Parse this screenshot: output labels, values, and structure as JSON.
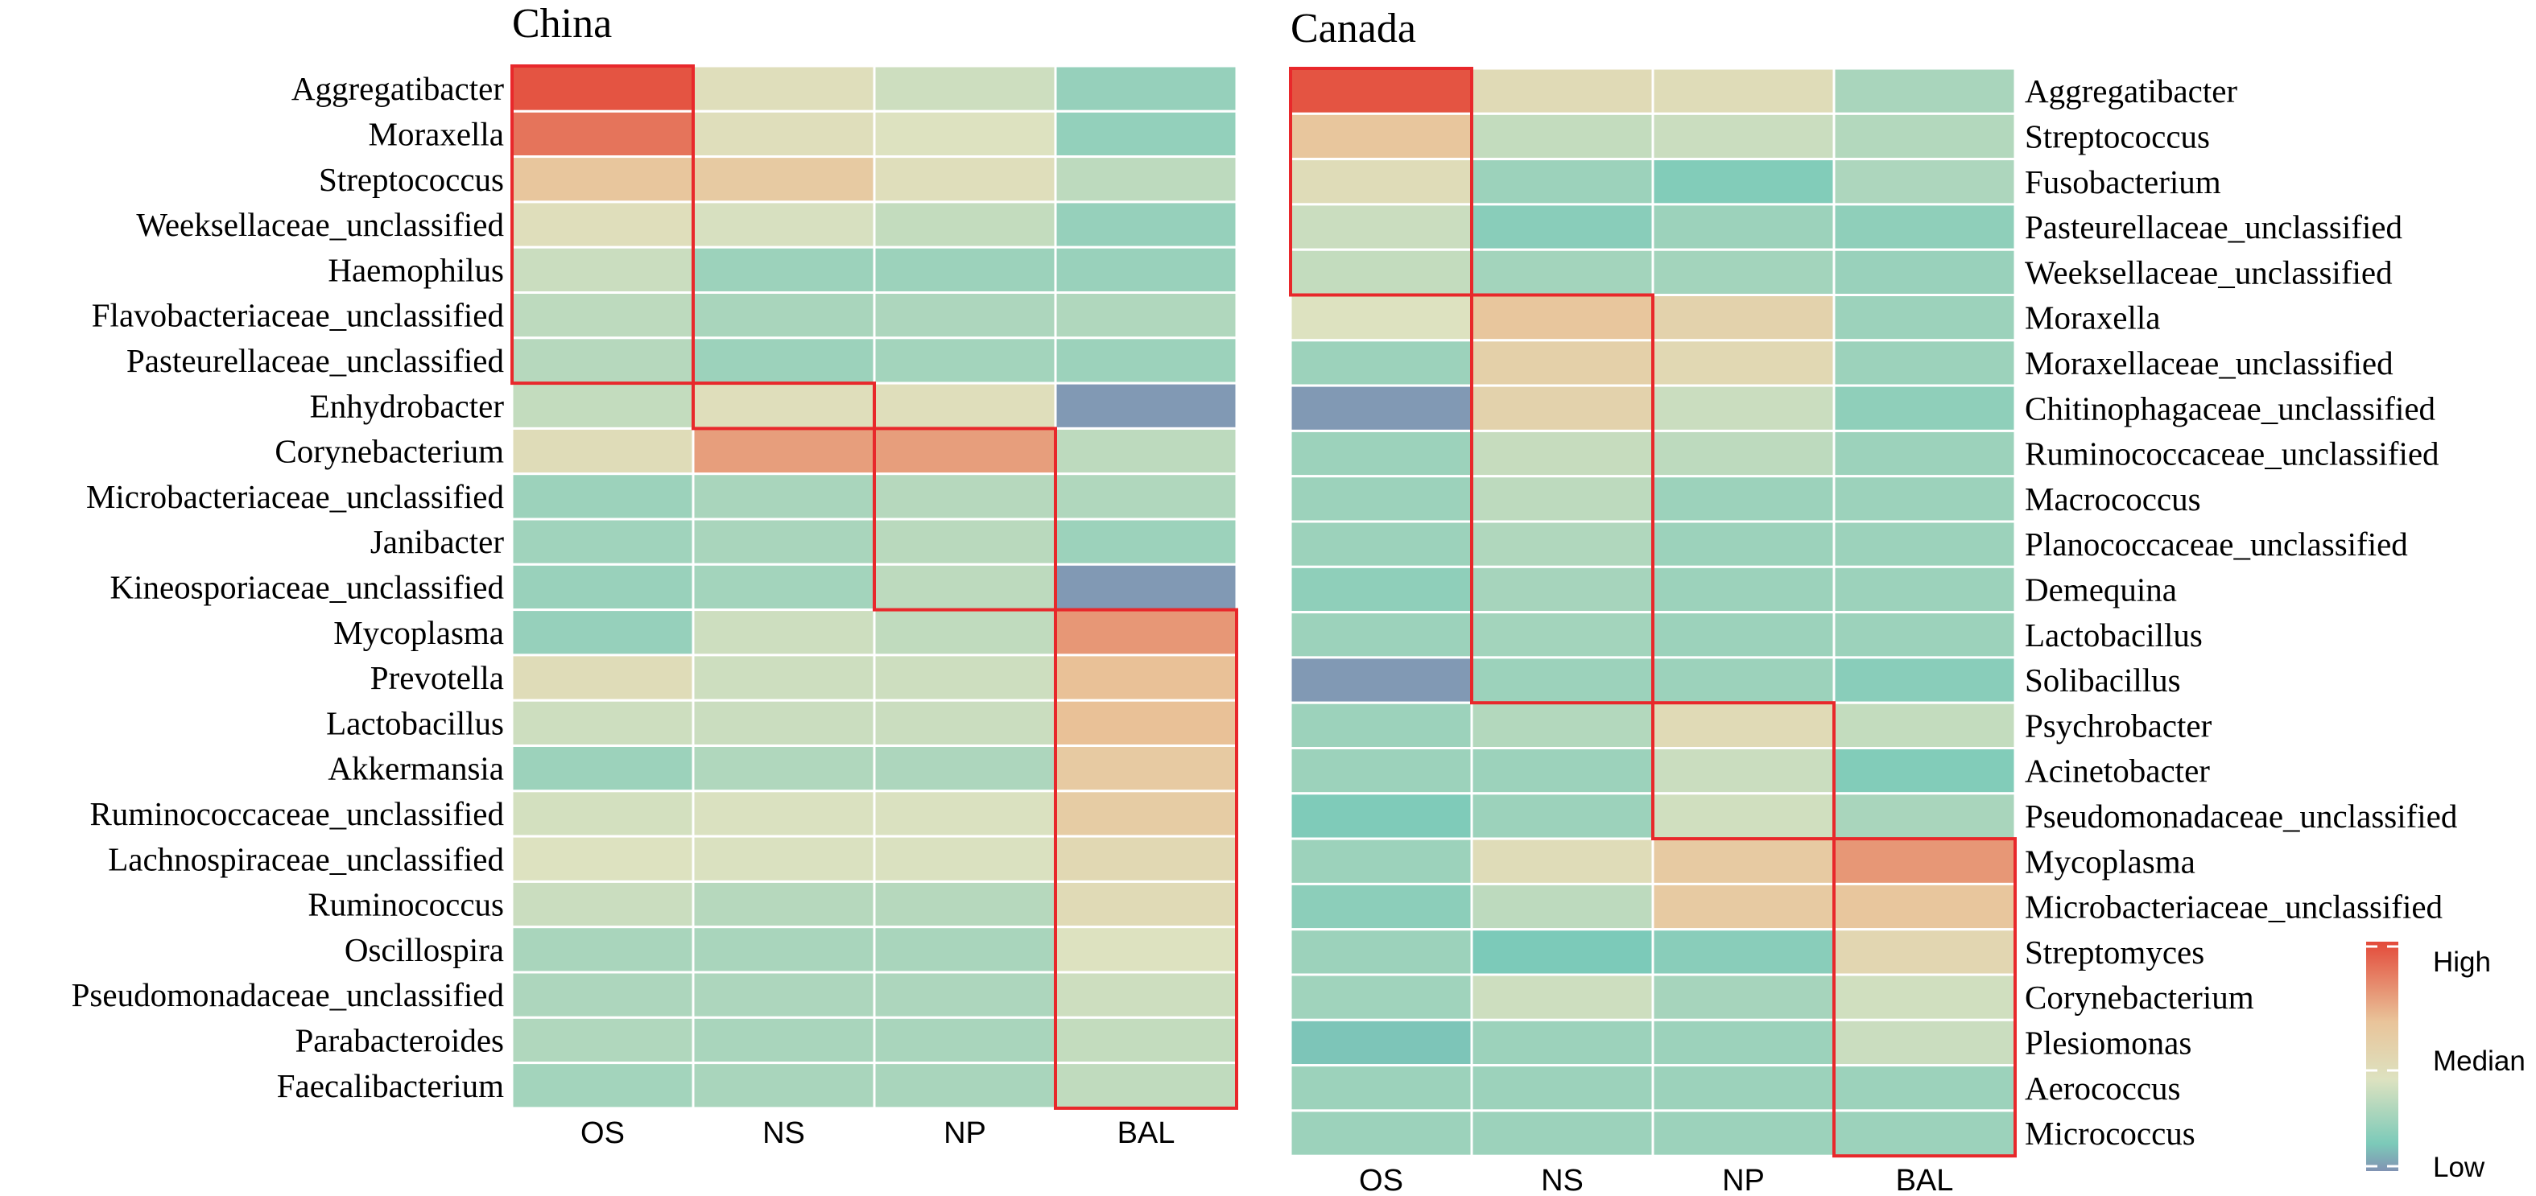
{
  "chart_data": [
    {
      "type": "heatmap",
      "title": "China",
      "columns": [
        "OS",
        "NS",
        "NP",
        "BAL"
      ],
      "rows": [
        "Aggregatibacter",
        "Moraxella",
        "Streptococcus",
        "Weeksellaceae_unclassified",
        "Haemophilus",
        "Flavobacteriaceae_unclassified",
        "Pasteurellaceae_unclassified",
        "Enhydrobacter",
        "Corynebacterium",
        "Microbacteriaceae_unclassified",
        "Janibacter",
        "Kineosporiaceae_unclassified",
        "Mycoplasma",
        "Prevotella",
        "Lactobacillus",
        "Akkermansia",
        "Ruminococcaceae_unclassified",
        "Lachnospiraceae_unclassified",
        "Ruminococcus",
        "Oscillospira",
        "Pseudomonadaceae_unclassified",
        "Parabacteroides",
        "Faecalibacterium"
      ],
      "values": [
        [
          0.97,
          0.52,
          0.45,
          0.28
        ],
        [
          0.88,
          0.52,
          0.5,
          0.27
        ],
        [
          0.64,
          0.62,
          0.52,
          0.4
        ],
        [
          0.52,
          0.48,
          0.42,
          0.28
        ],
        [
          0.44,
          0.3,
          0.3,
          0.29
        ],
        [
          0.4,
          0.34,
          0.35,
          0.36
        ],
        [
          0.38,
          0.3,
          0.32,
          0.3
        ],
        [
          0.42,
          0.52,
          0.52,
          0.02
        ],
        [
          0.53,
          0.76,
          0.76,
          0.4
        ],
        [
          0.3,
          0.34,
          0.38,
          0.36
        ],
        [
          0.31,
          0.34,
          0.39,
          0.3
        ],
        [
          0.29,
          0.32,
          0.4,
          0.02
        ],
        [
          0.28,
          0.45,
          0.41,
          0.78
        ],
        [
          0.53,
          0.45,
          0.45,
          0.66
        ],
        [
          0.45,
          0.44,
          0.44,
          0.66
        ],
        [
          0.3,
          0.36,
          0.35,
          0.62
        ],
        [
          0.47,
          0.49,
          0.49,
          0.61
        ],
        [
          0.5,
          0.49,
          0.49,
          0.55
        ],
        [
          0.44,
          0.38,
          0.38,
          0.54
        ],
        [
          0.34,
          0.34,
          0.34,
          0.5
        ],
        [
          0.35,
          0.35,
          0.35,
          0.45
        ],
        [
          0.36,
          0.34,
          0.34,
          0.42
        ],
        [
          0.32,
          0.34,
          0.34,
          0.41
        ]
      ],
      "highlight_blocks": [
        {
          "column": "OS",
          "from_row": "Aggregatibacter",
          "to_row": "Pasteurellaceae_unclassified"
        },
        {
          "column": "NS",
          "from_row": "Enhydrobacter",
          "to_row": "Enhydrobacter"
        },
        {
          "column": "NP",
          "from_row": "Corynebacterium",
          "to_row": "Kineosporiaceae_unclassified"
        },
        {
          "column": "BAL",
          "from_row": "Mycoplasma",
          "to_row": "Faecalibacterium"
        }
      ]
    },
    {
      "type": "heatmap",
      "title": "Canada",
      "columns": [
        "OS",
        "NS",
        "NP",
        "BAL"
      ],
      "rows": [
        "Aggregatibacter",
        "Streptococcus",
        "Fusobacterium",
        "Pasteurellaceae_unclassified",
        "Weeksellaceae_unclassified",
        "Moraxella",
        "Moraxellaceae_unclassified",
        "Chitinophagaceae_unclassified",
        "Ruminococcaceae_unclassified",
        "Macrococcus",
        "Planococcaceae_unclassified",
        "Demequina",
        "Lactobacillus",
        "Solibacillus",
        "Psychrobacter",
        "Acinetobacter",
        "Pseudomonadaceae_unclassified",
        "Mycoplasma",
        "Microbacteriaceae_unclassified",
        "Streptomyces",
        "Corynebacterium",
        "Plesiomonas",
        "Aerococcus",
        "Micrococcus"
      ],
      "values": [
        [
          0.97,
          0.54,
          0.53,
          0.34
        ],
        [
          0.64,
          0.42,
          0.44,
          0.37
        ],
        [
          0.53,
          0.3,
          0.22,
          0.35
        ],
        [
          0.44,
          0.24,
          0.3,
          0.26
        ],
        [
          0.42,
          0.32,
          0.32,
          0.29
        ],
        [
          0.5,
          0.64,
          0.58,
          0.3
        ],
        [
          0.3,
          0.59,
          0.55,
          0.3
        ],
        [
          0.02,
          0.58,
          0.44,
          0.26
        ],
        [
          0.3,
          0.43,
          0.4,
          0.3
        ],
        [
          0.3,
          0.4,
          0.3,
          0.3
        ],
        [
          0.3,
          0.36,
          0.3,
          0.3
        ],
        [
          0.26,
          0.33,
          0.3,
          0.3
        ],
        [
          0.3,
          0.32,
          0.3,
          0.3
        ],
        [
          0.02,
          0.3,
          0.3,
          0.24
        ],
        [
          0.3,
          0.37,
          0.54,
          0.42
        ],
        [
          0.3,
          0.3,
          0.44,
          0.22
        ],
        [
          0.21,
          0.3,
          0.46,
          0.34
        ],
        [
          0.3,
          0.53,
          0.62,
          0.78
        ],
        [
          0.25,
          0.4,
          0.62,
          0.64
        ],
        [
          0.3,
          0.2,
          0.24,
          0.56
        ],
        [
          0.31,
          0.45,
          0.33,
          0.46
        ],
        [
          0.18,
          0.3,
          0.3,
          0.44
        ],
        [
          0.3,
          0.3,
          0.3,
          0.3
        ],
        [
          0.3,
          0.3,
          0.3,
          0.3
        ]
      ],
      "highlight_blocks": [
        {
          "column": "OS",
          "from_row": "Aggregatibacter",
          "to_row": "Weeksellaceae_unclassified"
        },
        {
          "column": "NS",
          "from_row": "Moraxella",
          "to_row": "Solibacillus"
        },
        {
          "column": "NP",
          "from_row": "Psychrobacter",
          "to_row": "Pseudomonadaceae_unclassified"
        },
        {
          "column": "BAL",
          "from_row": "Mycoplasma",
          "to_row": "Micrococcus"
        }
      ]
    }
  ],
  "legend": {
    "labels": [
      "High",
      "Median",
      "Low"
    ],
    "colors": [
      "#e34a3a",
      "#e9c49a",
      "#dde2c0",
      "#7ccab9",
      "#8193b3"
    ]
  },
  "colors": {
    "highlight": "#e8282b",
    "grid": "#ffffff"
  }
}
